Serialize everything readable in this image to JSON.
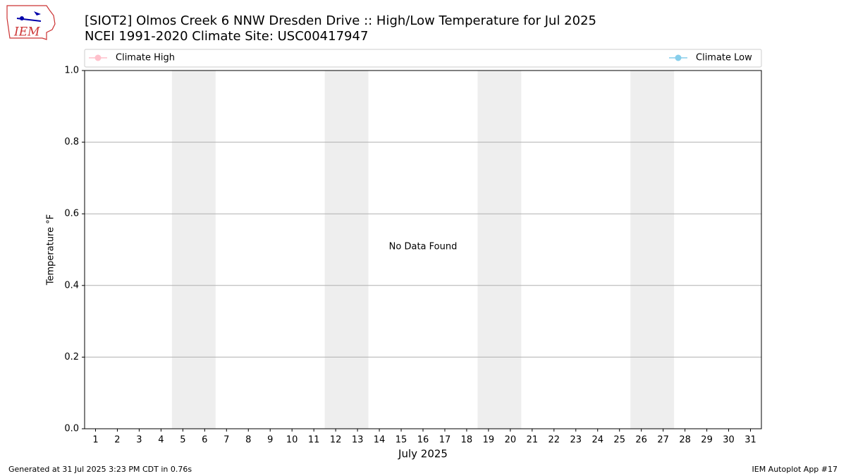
{
  "chart_data": {
    "type": "line",
    "title": "[SIOT2] Olmos Creek 6 NNW Dresden Drive :: High/Low Temperature for Jul 2025",
    "subtitle": "NCEI 1991-2020 Climate Site: USC00417947",
    "x_label": "July 2025",
    "y_label": "Temperature °F",
    "annotation": "No Data Found",
    "footer_left": "Generated at 31 Jul 2025 3:23 PM CDT in 0.76s",
    "footer_right": "IEM Autoplot App #17",
    "logo_text": "IEM",
    "x": [
      1,
      2,
      3,
      4,
      5,
      6,
      7,
      8,
      9,
      10,
      11,
      12,
      13,
      14,
      15,
      16,
      17,
      18,
      19,
      20,
      21,
      22,
      23,
      24,
      25,
      26,
      27,
      28,
      29,
      30,
      31
    ],
    "xlim": [
      0.5,
      31.5
    ],
    "xticks": [
      1,
      2,
      3,
      4,
      5,
      6,
      7,
      8,
      9,
      10,
      11,
      12,
      13,
      14,
      15,
      16,
      17,
      18,
      19,
      20,
      21,
      22,
      23,
      24,
      25,
      26,
      27,
      28,
      29,
      30,
      31
    ],
    "ylim": [
      0,
      1
    ],
    "yticks": [
      {
        "value": 0,
        "label": "0.0"
      },
      0.2,
      0.4,
      0.6,
      0.8,
      {
        "value": 1,
        "label": "1.0"
      }
    ],
    "grid": true,
    "weekend_spans": [
      [
        4.5,
        6.5
      ],
      [
        11.5,
        13.5
      ],
      [
        18.5,
        20.5
      ],
      [
        25.5,
        27.5
      ]
    ],
    "weekend_color": "#eeeeee",
    "series": [
      {
        "name": "Climate High",
        "color": "#ffc0cb",
        "values": [
          null,
          null,
          null,
          null,
          null,
          null,
          null,
          null,
          null,
          null,
          null,
          null,
          null,
          null,
          null,
          null,
          null,
          null,
          null,
          null,
          null,
          null,
          null,
          null,
          null,
          null,
          null,
          null,
          null,
          null,
          null
        ]
      },
      {
        "name": "Climate Low",
        "color": "#87ceeb",
        "values": [
          null,
          null,
          null,
          null,
          null,
          null,
          null,
          null,
          null,
          null,
          null,
          null,
          null,
          null,
          null,
          null,
          null,
          null,
          null,
          null,
          null,
          null,
          null,
          null,
          null,
          null,
          null,
          null,
          null,
          null,
          null
        ]
      }
    ]
  }
}
